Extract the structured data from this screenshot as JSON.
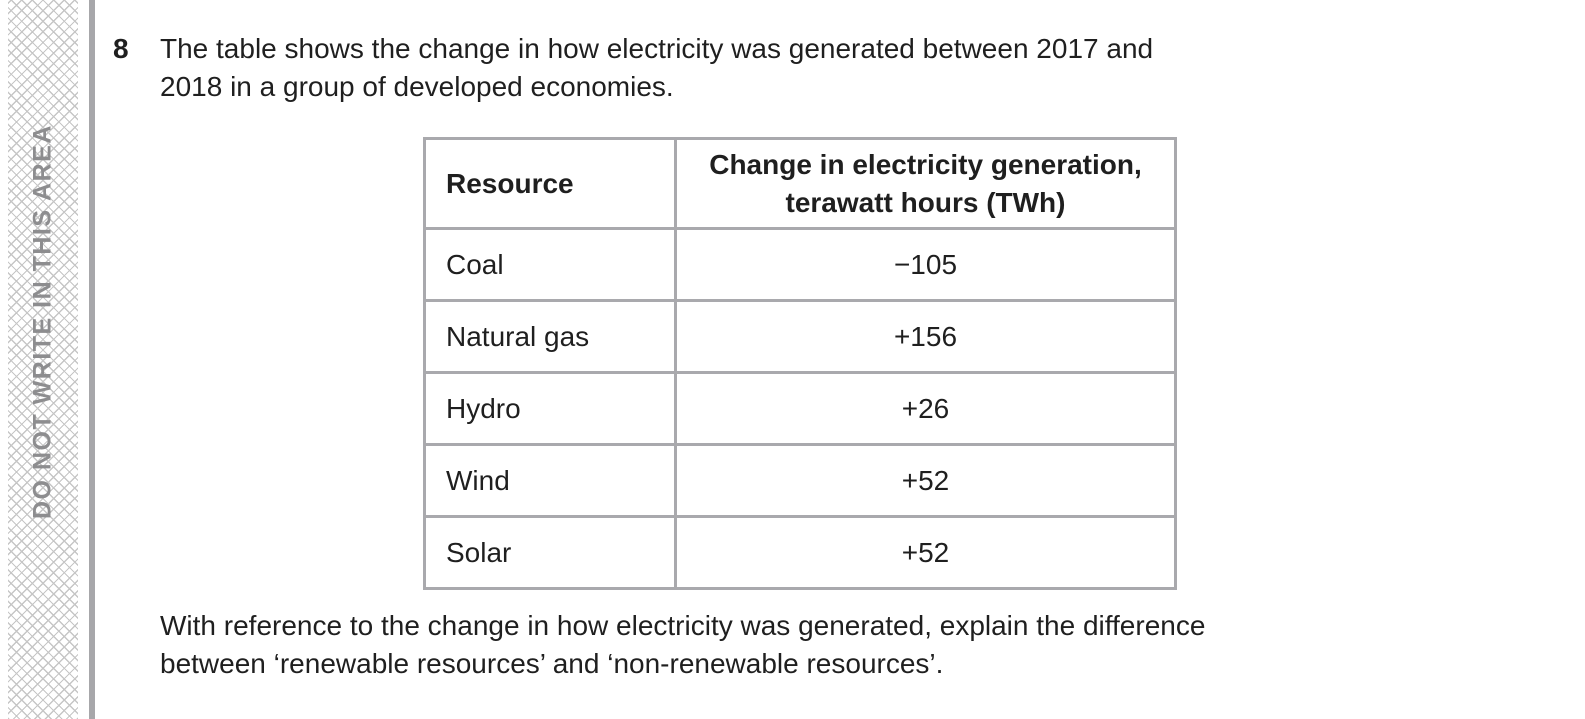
{
  "page": {
    "margin_strip": {
      "label": "DO NOT WRITE IN THIS AREA",
      "text_color": "#8d8d8f",
      "hatch_color": "#c6c6c6"
    },
    "rule_color": "#a7a7aa"
  },
  "question": {
    "number": "8",
    "intro_lines": [
      "The table shows the change in how electricity was generated between 2017 and",
      "2018 in a group of developed economies."
    ],
    "prompt_lines": [
      "With reference to the change in how electricity was generated, explain the difference",
      "between ‘renewable resources’ and ‘non-renewable resources’."
    ]
  },
  "table": {
    "border_color": "#a9a9ad",
    "headers": {
      "resource": "Resource",
      "change_lines": [
        "Change in electricity generation,",
        "terawatt hours (TWh)"
      ]
    },
    "rows": [
      {
        "resource": "Coal",
        "change": "−105"
      },
      {
        "resource": "Natural gas",
        "change": "+156"
      },
      {
        "resource": "Hydro",
        "change": "+26"
      },
      {
        "resource": "Wind",
        "change": "+52"
      },
      {
        "resource": "Solar",
        "change": "+52"
      }
    ]
  }
}
